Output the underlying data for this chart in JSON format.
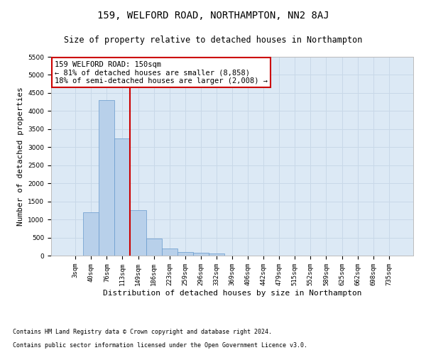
{
  "title": "159, WELFORD ROAD, NORTHAMPTON, NN2 8AJ",
  "subtitle": "Size of property relative to detached houses in Northampton",
  "xlabel": "Distribution of detached houses by size in Northampton",
  "ylabel": "Number of detached properties",
  "footnote1": "Contains HM Land Registry data © Crown copyright and database right 2024.",
  "footnote2": "Contains public sector information licensed under the Open Government Licence v3.0.",
  "categories": [
    "3sqm",
    "40sqm",
    "76sqm",
    "113sqm",
    "149sqm",
    "186sqm",
    "223sqm",
    "259sqm",
    "296sqm",
    "332sqm",
    "369sqm",
    "406sqm",
    "442sqm",
    "479sqm",
    "515sqm",
    "552sqm",
    "589sqm",
    "625sqm",
    "662sqm",
    "698sqm",
    "735sqm"
  ],
  "values": [
    0,
    1200,
    4300,
    3250,
    1250,
    475,
    200,
    100,
    75,
    50,
    0,
    0,
    0,
    0,
    0,
    0,
    0,
    0,
    0,
    0,
    0
  ],
  "bar_color": "#b8d0ea",
  "bar_edge_color": "#6699cc",
  "vline_x_index": 3,
  "vline_color": "#cc0000",
  "ylim": [
    0,
    5500
  ],
  "yticks": [
    0,
    500,
    1000,
    1500,
    2000,
    2500,
    3000,
    3500,
    4000,
    4500,
    5000,
    5500
  ],
  "annotation_text": "159 WELFORD ROAD: 150sqm\n← 81% of detached houses are smaller (8,858)\n18% of semi-detached houses are larger (2,008) →",
  "annotation_box_facecolor": "#ffffff",
  "annotation_box_edgecolor": "#cc0000",
  "grid_color": "#c8d8e8",
  "background_color": "#dce9f5",
  "title_fontsize": 10,
  "subtitle_fontsize": 8.5,
  "tick_fontsize": 6.5,
  "ylabel_fontsize": 8,
  "xlabel_fontsize": 8,
  "annotation_fontsize": 7.5,
  "footnote_fontsize": 6
}
